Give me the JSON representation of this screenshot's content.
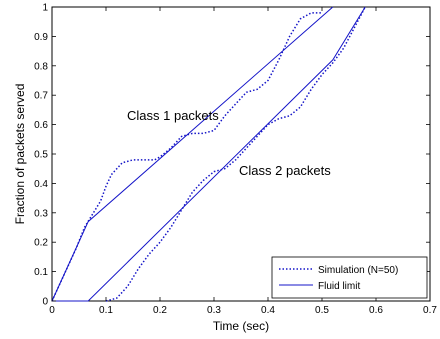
{
  "chart_data": {
    "type": "line",
    "title": "",
    "xlabel": "Time (sec)",
    "ylabel": "Fraction of packets served",
    "xlim": [
      0,
      0.7
    ],
    "ylim": [
      0,
      1
    ],
    "x_ticks": [
      "0",
      "0.1",
      "0.2",
      "0.3",
      "0.4",
      "0.5",
      "0.6",
      "0.7"
    ],
    "y_ticks": [
      "0",
      "0.1",
      "0.2",
      "0.3",
      "0.4",
      "0.5",
      "0.6",
      "0.7",
      "0.8",
      "0.9",
      "1"
    ],
    "grid": false,
    "legend_position": "bottom-right",
    "legend": [
      {
        "label": "Simulation (N=50)",
        "style": "dotted"
      },
      {
        "label": "Fluid limit",
        "style": "solid"
      }
    ],
    "annotations": [
      {
        "text": "Class 1 packets",
        "x": 0.19,
        "y": 0.63
      },
      {
        "text": "Class 2 packets",
        "x": 0.35,
        "y": 0.44
      }
    ],
    "color": "#1414c8",
    "series": [
      {
        "group": "Class 1 packets",
        "kind": "Fluid limit",
        "style": "solid",
        "points": [
          [
            0,
            0
          ],
          [
            0.067,
            0.27
          ],
          [
            0.52,
            1.0
          ]
        ]
      },
      {
        "group": "Class 2 packets",
        "kind": "Fluid limit",
        "style": "solid",
        "points": [
          [
            0,
            0
          ],
          [
            0.067,
            0
          ],
          [
            0.52,
            0.82
          ],
          [
            0.58,
            1.0
          ]
        ]
      },
      {
        "group": "Class 1 packets",
        "kind": "Simulation (N=50)",
        "style": "dotted",
        "points": [
          [
            0,
            0
          ],
          [
            0.01,
            0.04
          ],
          [
            0.02,
            0.08
          ],
          [
            0.03,
            0.12
          ],
          [
            0.045,
            0.18
          ],
          [
            0.06,
            0.25
          ],
          [
            0.07,
            0.28
          ],
          [
            0.08,
            0.31
          ],
          [
            0.09,
            0.34
          ],
          [
            0.1,
            0.39
          ],
          [
            0.11,
            0.43
          ],
          [
            0.12,
            0.45
          ],
          [
            0.13,
            0.47
          ],
          [
            0.15,
            0.48
          ],
          [
            0.17,
            0.48
          ],
          [
            0.19,
            0.48
          ],
          [
            0.2,
            0.49
          ],
          [
            0.22,
            0.52
          ],
          [
            0.24,
            0.56
          ],
          [
            0.26,
            0.57
          ],
          [
            0.28,
            0.57
          ],
          [
            0.3,
            0.58
          ],
          [
            0.32,
            0.63
          ],
          [
            0.34,
            0.67
          ],
          [
            0.36,
            0.71
          ],
          [
            0.38,
            0.72
          ],
          [
            0.4,
            0.75
          ],
          [
            0.42,
            0.82
          ],
          [
            0.44,
            0.9
          ],
          [
            0.46,
            0.96
          ],
          [
            0.48,
            0.98
          ],
          [
            0.5,
            0.98
          ]
        ]
      },
      {
        "group": "Class 2 packets",
        "kind": "Simulation (N=50)",
        "style": "dotted",
        "points": [
          [
            0.1,
            0
          ],
          [
            0.12,
            0.01
          ],
          [
            0.14,
            0.05
          ],
          [
            0.16,
            0.11
          ],
          [
            0.18,
            0.16
          ],
          [
            0.2,
            0.2
          ],
          [
            0.22,
            0.25
          ],
          [
            0.24,
            0.31
          ],
          [
            0.26,
            0.37
          ],
          [
            0.28,
            0.41
          ],
          [
            0.3,
            0.44
          ],
          [
            0.32,
            0.45
          ],
          [
            0.34,
            0.48
          ],
          [
            0.36,
            0.52
          ],
          [
            0.38,
            0.56
          ],
          [
            0.4,
            0.6
          ],
          [
            0.42,
            0.62
          ],
          [
            0.44,
            0.63
          ],
          [
            0.46,
            0.66
          ],
          [
            0.48,
            0.72
          ],
          [
            0.5,
            0.77
          ],
          [
            0.52,
            0.81
          ],
          [
            0.54,
            0.86
          ],
          [
            0.56,
            0.93
          ],
          [
            0.58,
            1.0
          ]
        ]
      }
    ]
  }
}
